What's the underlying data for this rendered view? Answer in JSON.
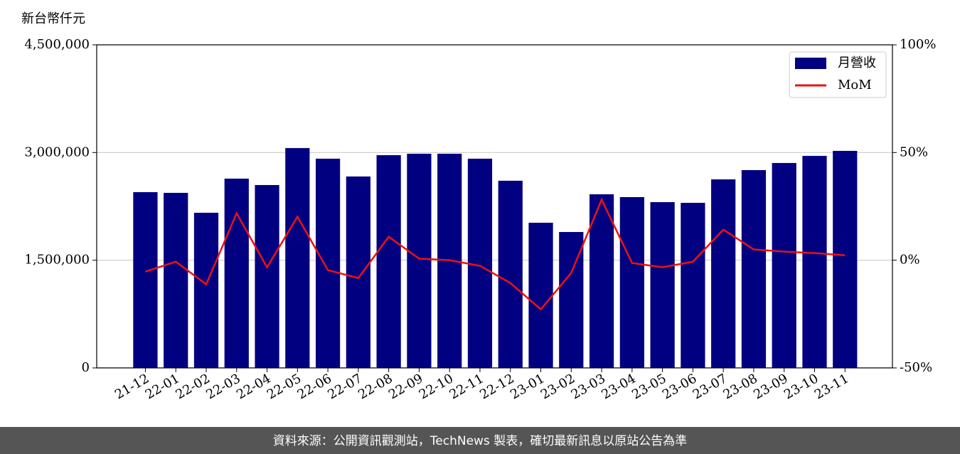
{
  "chart_data": {
    "type": "bar_line",
    "y_label": "新台幣仟元",
    "source": "資料來源：公開資訊觀測站，TechNews 製表，確切最新訊息以原站公告為準",
    "categories": [
      "21-12",
      "22-01",
      "22-02",
      "22-03",
      "22-04",
      "22-05",
      "22-06",
      "22-07",
      "22-08",
      "22-09",
      "22-10",
      "22-11",
      "22-12",
      "23-01",
      "23-02",
      "23-03",
      "23-04",
      "23-05",
      "23-06",
      "23-07",
      "23-08",
      "23-09",
      "23-10",
      "23-11"
    ],
    "series": [
      {
        "name": "月營收",
        "type": "bar",
        "color": "#000080",
        "values": [
          2448000,
          2438000,
          2161000,
          2636000,
          2547000,
          3062000,
          2914000,
          2666000,
          2963000,
          2983000,
          2983000,
          2914000,
          2607000,
          2022000,
          1893000,
          2418000,
          2379000,
          2309000,
          2299000,
          2626000,
          2755000,
          2854000,
          2953000,
          3023000
        ]
      },
      {
        "name": "MoM",
        "type": "line",
        "axis": "y2",
        "color": "#ee1111",
        "values": [
          -5.3,
          -0.7,
          -11.2,
          21.8,
          -3.3,
          20.2,
          -4.6,
          -8.3,
          10.9,
          0.7,
          0,
          -2.6,
          -10.6,
          -22.8,
          -5.9,
          28.1,
          -1.3,
          -3.3,
          -0.7,
          14.2,
          5.0,
          4.0,
          3.3,
          2.3
        ]
      }
    ],
    "ylim": [
      0,
      4500000
    ],
    "yticks": [
      0,
      {
        "value": 1500000,
        "label": "1,500,000"
      },
      {
        "value": 3000000,
        "label": "3,000,000"
      },
      {
        "value": 4500000,
        "label": "4,500,000"
      }
    ],
    "y2lim": [
      -50,
      100
    ],
    "y2ticks": [
      {
        "value": -50,
        "label": "-50%"
      },
      {
        "value": 0,
        "label": "0%"
      },
      {
        "value": 50,
        "label": "50%"
      },
      {
        "value": 100,
        "label": "100%"
      }
    ],
    "grid": true,
    "legend": "upper right"
  }
}
